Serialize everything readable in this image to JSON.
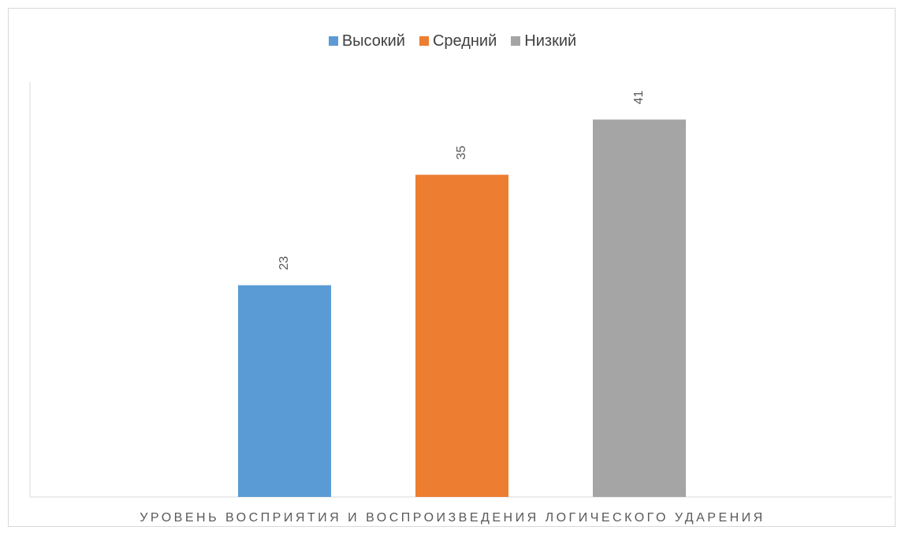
{
  "chart_data": {
    "type": "bar",
    "title": "",
    "xlabel": "УРОВЕНЬ ВОСПРИЯТИЯ И ВОСПРОИЗВЕДЕНИЯ ЛОГИЧЕСКОГО УДАРЕНИЯ",
    "ylabel": "",
    "categories": [
      "УРОВЕНЬ ВОСПРИЯТИЯ И ВОСПРОИЗВЕДЕНИЯ ЛОГИЧЕСКОГО УДАРЕНИЯ"
    ],
    "series": [
      {
        "name": "Высокий",
        "values": [
          23
        ],
        "color": "#5b9bd5"
      },
      {
        "name": "Средний",
        "values": [
          35
        ],
        "color": "#ed7d31"
      },
      {
        "name": "Низкий",
        "values": [
          41
        ],
        "color": "#a5a5a5"
      }
    ],
    "ylim": [
      0,
      45
    ],
    "grid": false,
    "legend_position": "top",
    "data_labels": true,
    "data_label_orientation": "rotated"
  }
}
